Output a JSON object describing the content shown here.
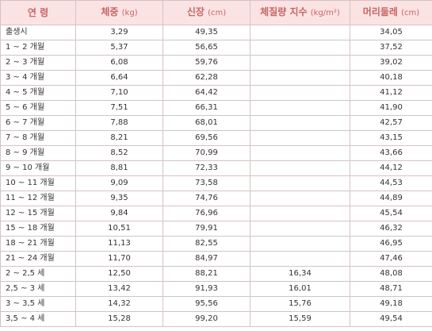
{
  "headers": [
    {
      "label": "연 령",
      "unit": ""
    },
    {
      "label": "체중",
      "unit": "(kg)"
    },
    {
      "label": "신장",
      "unit": "(cm)"
    },
    {
      "label": "체질량 지수",
      "unit": "(kg/m²)"
    },
    {
      "label": "머리둘레",
      "unit": "(cm)"
    }
  ],
  "rows": [
    {
      "age": "출생시",
      "weight": "3,29",
      "height": "49,35",
      "bmi": "",
      "head": "34,05"
    },
    {
      "age": "1 ~ 2 개월",
      "weight": "5,37",
      "height": "56,65",
      "bmi": "",
      "head": "37,52"
    },
    {
      "age": "2 ~ 3 개월",
      "weight": "6,08",
      "height": "59,76",
      "bmi": "",
      "head": "39,02"
    },
    {
      "age": "3 ~ 4 개월",
      "weight": "6,64",
      "height": "62,28",
      "bmi": "",
      "head": "40,18"
    },
    {
      "age": "4 ~ 5 개월",
      "weight": "7,10",
      "height": "64,42",
      "bmi": "",
      "head": "41,12"
    },
    {
      "age": "5 ~ 6 개월",
      "weight": "7,51",
      "height": "66,31",
      "bmi": "",
      "head": "41,90"
    },
    {
      "age": "6 ~ 7 개월",
      "weight": "7,88",
      "height": "68,01",
      "bmi": "",
      "head": "42,57"
    },
    {
      "age": "7 ~ 8 개월",
      "weight": "8,21",
      "height": "69,56",
      "bmi": "",
      "head": "43,15"
    },
    {
      "age": "8 ~ 9 개월",
      "weight": "8,52",
      "height": "70,99",
      "bmi": "",
      "head": "43,66"
    },
    {
      "age": "9 ~ 10 개월",
      "weight": "8,81",
      "height": "72,33",
      "bmi": "",
      "head": "44,12"
    },
    {
      "age": "10 ~ 11 개월",
      "weight": "9,09",
      "height": "73,58",
      "bmi": "",
      "head": "44,53"
    },
    {
      "age": "11 ~ 12 개월",
      "weight": "9,35",
      "height": "74,76",
      "bmi": "",
      "head": "44,89"
    },
    {
      "age": "12 ~ 15 개월",
      "weight": "9,84",
      "height": "76,96",
      "bmi": "",
      "head": "45,54"
    },
    {
      "age": "15 ~ 18 개월",
      "weight": "10,51",
      "height": "79,91",
      "bmi": "",
      "head": "46,32"
    },
    {
      "age": "18 ~ 21 개월",
      "weight": "11,13",
      "height": "82,55",
      "bmi": "",
      "head": "46,95"
    },
    {
      "age": "21 ~ 24 개월",
      "weight": "11,70",
      "height": "84,97",
      "bmi": "",
      "head": "47,46"
    },
    {
      "age": "2 ~ 2,5 세",
      "weight": "12,50",
      "height": "88,21",
      "bmi": "16,34",
      "head": "48,08"
    },
    {
      "age": "2,5 ~ 3 세",
      "weight": "13,42",
      "height": "91,93",
      "bmi": "16,01",
      "head": "48,71"
    },
    {
      "age": "3 ~ 3,5 세",
      "weight": "14,32",
      "height": "95,56",
      "bmi": "15,76",
      "head": "49,18"
    },
    {
      "age": "3,5 ~ 4 세",
      "weight": "15,28",
      "height": "99,20",
      "bmi": "15,59",
      "head": "49,54"
    }
  ]
}
